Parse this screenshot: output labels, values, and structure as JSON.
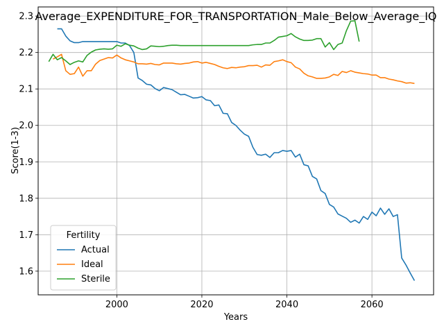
{
  "chart_data": {
    "type": "line",
    "title": "Average_EXPENDITURE_FOR_TRANSPORTATION_Male_Below_Average_IQ",
    "xlabel": "Years",
    "ylabel": "Score(1-3)",
    "xlim": [
      1981.5,
      2074.5
    ],
    "ylim": [
      1.535,
      2.325
    ],
    "xticks": [
      1980,
      2000,
      2020,
      2040,
      2060
    ],
    "yticks": [
      1.6,
      1.7,
      1.8,
      1.9,
      2.0,
      2.1,
      2.2,
      2.3
    ],
    "ytick_labels": [
      "1.6",
      "1.7",
      "1.8",
      "1.9",
      "2.0",
      "2.1",
      "2.2",
      "2.3"
    ],
    "grid": true,
    "legend": {
      "title": "Fertility",
      "placement": "lower-left"
    },
    "series": [
      {
        "name": "Actual",
        "color": "#1f77b4",
        "x": [
          1986,
          1987,
          1988,
          1989,
          1990,
          1991,
          1992,
          1993,
          1994,
          1995,
          1996,
          1997,
          1998,
          1999,
          2000,
          2001,
          2002,
          2003,
          2004,
          2005,
          2006,
          2007,
          2008,
          2009,
          2010,
          2011,
          2012,
          2013,
          2014,
          2015,
          2016,
          2017,
          2018,
          2019,
          2020,
          2021,
          2022,
          2023,
          2024,
          2025,
          2026,
          2027,
          2028,
          2029,
          2030,
          2031,
          2032,
          2033,
          2034,
          2035,
          2036,
          2037,
          2038,
          2039,
          2040,
          2041,
          2042,
          2043,
          2044,
          2045,
          2046,
          2047,
          2048,
          2049,
          2050,
          2051,
          2052,
          2053,
          2054,
          2055,
          2056,
          2057,
          2058,
          2059,
          2060,
          2061,
          2062,
          2063,
          2064,
          2065,
          2066,
          2067,
          2068,
          2069,
          2070
        ],
        "values": [
          2.265,
          2.265,
          2.245,
          2.232,
          2.227,
          2.227,
          2.23,
          2.23,
          2.23,
          2.23,
          2.23,
          2.23,
          2.23,
          2.23,
          2.23,
          2.226,
          2.226,
          2.219,
          2.2,
          2.13,
          2.123,
          2.113,
          2.111,
          2.101,
          2.095,
          2.104,
          2.101,
          2.098,
          2.091,
          2.084,
          2.085,
          2.08,
          2.075,
          2.076,
          2.079,
          2.07,
          2.068,
          2.054,
          2.056,
          2.033,
          2.032,
          2.008,
          2.0,
          1.987,
          1.976,
          1.97,
          1.94,
          1.92,
          1.918,
          1.921,
          1.912,
          1.925,
          1.925,
          1.931,
          1.929,
          1.931,
          1.913,
          1.921,
          1.892,
          1.889,
          1.86,
          1.853,
          1.821,
          1.813,
          1.783,
          1.776,
          1.757,
          1.751,
          1.745,
          1.734,
          1.74,
          1.732,
          1.75,
          1.742,
          1.762,
          1.752,
          1.773,
          1.756,
          1.771,
          1.75,
          1.755,
          1.636,
          1.617,
          1.595,
          1.574
        ]
      },
      {
        "name": "Ideal",
        "color": "#ff7f0e",
        "x": [
          1985,
          1986,
          1987,
          1988,
          1989,
          1990,
          1991,
          1992,
          1993,
          1994,
          1995,
          1996,
          1997,
          1998,
          1999,
          2000,
          2001,
          2002,
          2003,
          2004,
          2005,
          2006,
          2007,
          2008,
          2009,
          2010,
          2011,
          2012,
          2013,
          2014,
          2015,
          2016,
          2017,
          2018,
          2019,
          2020,
          2021,
          2022,
          2023,
          2024,
          2025,
          2026,
          2027,
          2028,
          2029,
          2030,
          2031,
          2032,
          2033,
          2034,
          2035,
          2036,
          2037,
          2038,
          2039,
          2040,
          2041,
          2042,
          2043,
          2044,
          2045,
          2046,
          2047,
          2048,
          2049,
          2050,
          2051,
          2052,
          2053,
          2054,
          2055,
          2056,
          2057,
          2058,
          2059,
          2060,
          2061,
          2062,
          2063,
          2064,
          2065,
          2066,
          2067,
          2068,
          2069,
          2070
        ],
        "values": [
          2.182,
          2.188,
          2.195,
          2.15,
          2.14,
          2.142,
          2.16,
          2.135,
          2.15,
          2.15,
          2.168,
          2.178,
          2.182,
          2.186,
          2.185,
          2.193,
          2.185,
          2.18,
          2.177,
          2.174,
          2.169,
          2.169,
          2.168,
          2.17,
          2.167,
          2.166,
          2.171,
          2.171,
          2.171,
          2.169,
          2.168,
          2.17,
          2.171,
          2.174,
          2.175,
          2.171,
          2.173,
          2.17,
          2.167,
          2.162,
          2.158,
          2.156,
          2.159,
          2.158,
          2.16,
          2.161,
          2.164,
          2.164,
          2.165,
          2.16,
          2.166,
          2.165,
          2.175,
          2.177,
          2.18,
          2.175,
          2.172,
          2.16,
          2.155,
          2.143,
          2.136,
          2.133,
          2.129,
          2.129,
          2.13,
          2.133,
          2.14,
          2.137,
          2.148,
          2.145,
          2.15,
          2.146,
          2.144,
          2.142,
          2.141,
          2.138,
          2.138,
          2.131,
          2.131,
          2.127,
          2.125,
          2.122,
          2.12,
          2.116,
          2.117,
          2.115
        ]
      },
      {
        "name": "Sterile",
        "color": "#2ca02c",
        "x": [
          1984,
          1985,
          1986,
          1987,
          1988,
          1989,
          1990,
          1991,
          1992,
          1993,
          1994,
          1995,
          1996,
          1997,
          1998,
          1999,
          2000,
          2001,
          2002,
          2003,
          2004,
          2005,
          2006,
          2007,
          2008,
          2009,
          2010,
          2011,
          2012,
          2013,
          2014,
          2015,
          2016,
          2017,
          2018,
          2019,
          2020,
          2021,
          2022,
          2023,
          2024,
          2025,
          2026,
          2027,
          2028,
          2029,
          2030,
          2031,
          2032,
          2033,
          2034,
          2035,
          2036,
          2037,
          2038,
          2039,
          2040,
          2041,
          2042,
          2043,
          2044,
          2045,
          2046,
          2047,
          2048,
          2049,
          2050,
          2051,
          2052,
          2053,
          2054,
          2055,
          2056,
          2057
        ],
        "values": [
          2.175,
          2.195,
          2.18,
          2.186,
          2.177,
          2.167,
          2.173,
          2.177,
          2.174,
          2.192,
          2.201,
          2.207,
          2.209,
          2.21,
          2.209,
          2.21,
          2.22,
          2.217,
          2.224,
          2.22,
          2.218,
          2.212,
          2.208,
          2.21,
          2.218,
          2.217,
          2.216,
          2.217,
          2.219,
          2.22,
          2.22,
          2.219,
          2.219,
          2.219,
          2.219,
          2.219,
          2.219,
          2.219,
          2.219,
          2.219,
          2.219,
          2.219,
          2.219,
          2.219,
          2.219,
          2.219,
          2.219,
          2.219,
          2.221,
          2.222,
          2.222,
          2.226,
          2.226,
          2.233,
          2.242,
          2.244,
          2.246,
          2.252,
          2.243,
          2.237,
          2.233,
          2.233,
          2.234,
          2.238,
          2.238,
          2.215,
          2.227,
          2.208,
          2.222,
          2.226,
          2.26,
          2.286,
          2.287,
          2.23
        ]
      }
    ]
  }
}
